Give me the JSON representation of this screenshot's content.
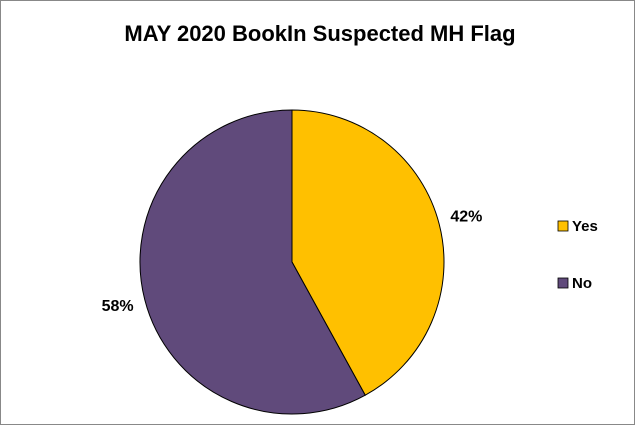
{
  "chart_data": {
    "type": "pie",
    "title": "MAY 2020 BookIn Suspected MH Flag",
    "categories": [
      "Yes",
      "No"
    ],
    "values": [
      42,
      58
    ],
    "value_labels": [
      "42%",
      "58%"
    ],
    "colors": [
      "#FFC000",
      "#604A7B"
    ],
    "legend": "right"
  }
}
